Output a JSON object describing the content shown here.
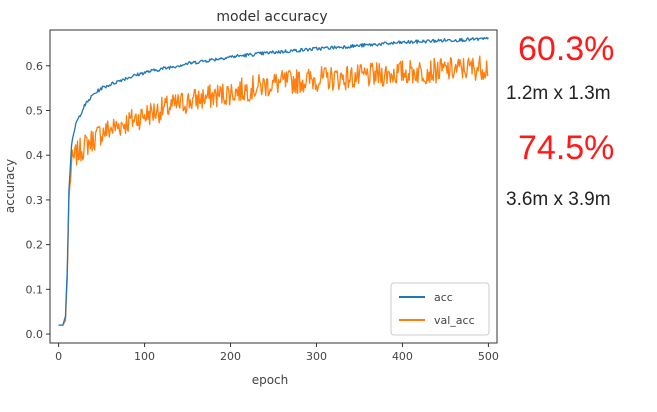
{
  "chart_data": {
    "type": "line",
    "title": "model accuracy",
    "xlabel": "epoch",
    "ylabel": "accuracy",
    "xlim": [
      -10,
      510
    ],
    "ylim": [
      -0.02,
      0.68
    ],
    "xticks": [
      "0",
      "100",
      "200",
      "300",
      "400",
      "500"
    ],
    "yticks": [
      "0.0",
      "0.1",
      "0.2",
      "0.3",
      "0.4",
      "0.5",
      "0.6"
    ],
    "grid": false,
    "legend_position": "bottom-right",
    "series": [
      {
        "name": "acc",
        "color": "#1f77b4",
        "x": [
          0,
          5,
          8,
          10,
          12,
          15,
          20,
          30,
          40,
          50,
          75,
          100,
          150,
          200,
          250,
          300,
          350,
          400,
          450,
          500
        ],
        "y": [
          0.02,
          0.02,
          0.04,
          0.14,
          0.32,
          0.42,
          0.47,
          0.51,
          0.535,
          0.55,
          0.57,
          0.585,
          0.605,
          0.62,
          0.63,
          0.638,
          0.645,
          0.652,
          0.657,
          0.66
        ]
      },
      {
        "name": "val_acc",
        "color": "#ff7f0e",
        "x": [
          0,
          5,
          8,
          10,
          12,
          15,
          20,
          30,
          40,
          50,
          75,
          100,
          150,
          200,
          250,
          300,
          350,
          400,
          450,
          500
        ],
        "y": [
          0.02,
          0.02,
          0.03,
          0.12,
          0.3,
          0.38,
          0.4,
          0.42,
          0.435,
          0.45,
          0.47,
          0.49,
          0.52,
          0.54,
          0.56,
          0.57,
          0.575,
          0.585,
          0.59,
          0.598
        ]
      }
    ]
  },
  "annotations": [
    {
      "percent": "60.3%",
      "dimensions": "1.2m x 1.3m"
    },
    {
      "percent": "74.5%",
      "dimensions": "3.6m x 3.9m"
    }
  ]
}
